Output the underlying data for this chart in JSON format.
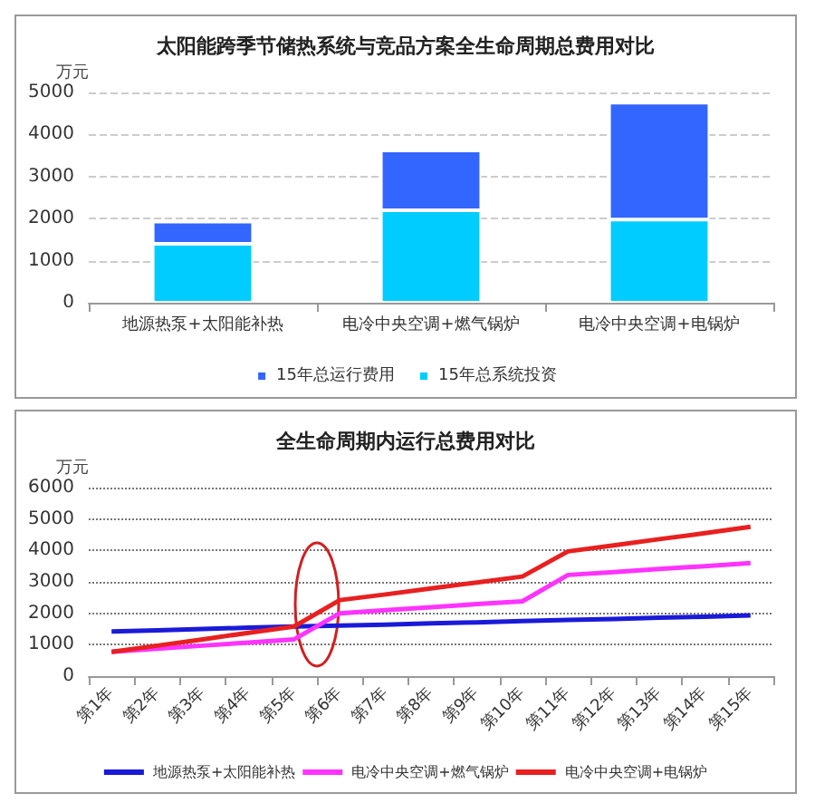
{
  "chart_data": [
    {
      "type": "bar",
      "title": "太阳能跨季节储热系统与竞品方案全生命周期总费用对比",
      "ylabel": "万元",
      "stacked": true,
      "categories": [
        "地源热泵+太阳能补热",
        "电冷中央空调+燃气锅炉",
        "电冷中央空调+电锅炉"
      ],
      "series": [
        {
          "name": "15年总系统投资",
          "color": "#00ccff",
          "values": [
            1400,
            2200,
            1980
          ]
        },
        {
          "name": "15年总运行费用",
          "color": "#3366ff",
          "values": [
            530,
            1420,
            2780
          ]
        }
      ],
      "ylim": [
        0,
        5000
      ],
      "yticks": [
        0,
        1000,
        2000,
        3000,
        4000,
        5000
      ],
      "grid": "y",
      "legend": "bottom"
    },
    {
      "type": "line",
      "title": "全生命周期内运行总费用对比",
      "ylabel": "万元",
      "categories": [
        "第1年",
        "第2年",
        "第3年",
        "第4年",
        "第5年",
        "第6年",
        "第7年",
        "第8年",
        "第9年",
        "第10年",
        "第11年",
        "第12年",
        "第13年",
        "第14年",
        "第15年"
      ],
      "series": [
        {
          "name": "地源热泵+太阳能补热",
          "color": "#1a1ad8",
          "values": [
            1420,
            1460,
            1500,
            1540,
            1580,
            1610,
            1640,
            1680,
            1710,
            1750,
            1790,
            1820,
            1860,
            1890,
            1930
          ]
        },
        {
          "name": "电冷中央空调+燃气锅炉",
          "color": "#ff33ff",
          "values": [
            770,
            870,
            970,
            1070,
            1170,
            2000,
            2100,
            2190,
            2290,
            2380,
            3220,
            3310,
            3410,
            3500,
            3600
          ]
        },
        {
          "name": "电冷中央空调+电锅炉",
          "color": "#e82020",
          "values": [
            770,
            970,
            1170,
            1380,
            1580,
            2420,
            2600,
            2790,
            2980,
            3170,
            3970,
            4160,
            4360,
            4550,
            4750
          ]
        }
      ],
      "ylim": [
        0,
        6000
      ],
      "yticks": [
        0,
        1000,
        2000,
        3000,
        4000,
        5000,
        6000
      ],
      "grid": "y",
      "legend": "bottom",
      "marker": "none",
      "line_style": "solid"
    }
  ]
}
